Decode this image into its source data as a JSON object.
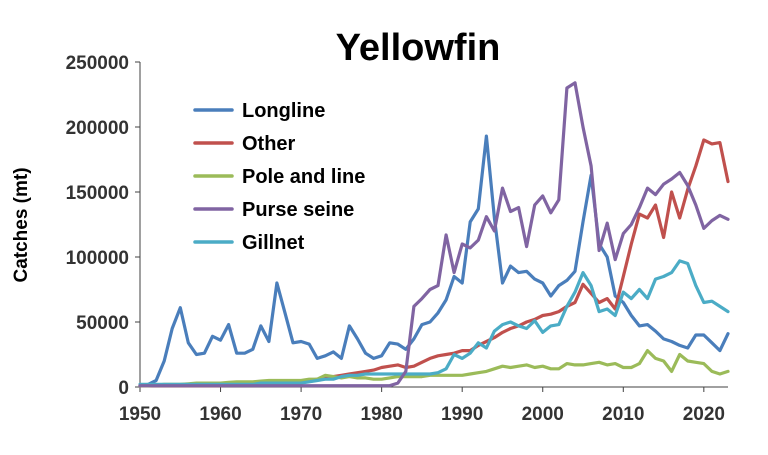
{
  "chart_data": {
    "type": "line",
    "title": "Yellowfin",
    "xlabel": "",
    "ylabel": "Catches (mt)",
    "xlim": [
      1950,
      2023
    ],
    "ylim": [
      0,
      250000
    ],
    "xticks": [
      1950,
      1960,
      1970,
      1980,
      1990,
      2000,
      2010,
      2020
    ],
    "yticks": [
      0,
      50000,
      100000,
      150000,
      200000,
      250000
    ],
    "x_tick_labels": [
      "1950",
      "1960",
      "1970",
      "1980",
      "1990",
      "2000",
      "2010",
      "2020"
    ],
    "y_tick_labels": [
      "0",
      "50000",
      "100000",
      "150000",
      "200000",
      "250000"
    ],
    "grid": false,
    "legend_position": "top-left",
    "x": [
      1950,
      1951,
      1952,
      1953,
      1954,
      1955,
      1956,
      1957,
      1958,
      1959,
      1960,
      1961,
      1962,
      1963,
      1964,
      1965,
      1966,
      1967,
      1968,
      1969,
      1970,
      1971,
      1972,
      1973,
      1974,
      1975,
      1976,
      1977,
      1978,
      1979,
      1980,
      1981,
      1982,
      1983,
      1984,
      1985,
      1986,
      1987,
      1988,
      1989,
      1990,
      1991,
      1992,
      1993,
      1994,
      1995,
      1996,
      1997,
      1998,
      1999,
      2000,
      2001,
      2002,
      2003,
      2004,
      2005,
      2006,
      2007,
      2008,
      2009,
      2010,
      2011,
      2012,
      2013,
      2014,
      2015,
      2016,
      2017,
      2018,
      2019,
      2020,
      2021,
      2022,
      2023
    ],
    "series": [
      {
        "name": "Longline",
        "color": "#4a7ebb",
        "values": [
          1000,
          2000,
          5000,
          20000,
          45000,
          61000,
          34000,
          25000,
          26000,
          39000,
          36000,
          48000,
          26000,
          26000,
          29000,
          47000,
          35000,
          80000,
          57000,
          34000,
          35000,
          33000,
          22000,
          24000,
          27000,
          22000,
          47000,
          37000,
          26000,
          22000,
          24000,
          34000,
          33000,
          29000,
          37000,
          48000,
          50000,
          57000,
          67000,
          85000,
          80000,
          127000,
          137000,
          193000,
          130000,
          80000,
          93000,
          88000,
          89000,
          83000,
          80000,
          70000,
          78000,
          82000,
          89000,
          127000,
          163000,
          110000,
          100000,
          70000,
          65000,
          55000,
          47000,
          48000,
          43000,
          37000,
          35000,
          32000,
          30000,
          40000,
          40000,
          34000,
          28000,
          41000
        ]
      },
      {
        "name": "Other",
        "color": "#c0504d",
        "values": [
          1000,
          1000,
          1000,
          1000,
          1000,
          1000,
          1000,
          1000,
          1000,
          1000,
          1000,
          1500,
          2000,
          2000,
          2000,
          2500,
          3000,
          3000,
          3500,
          4000,
          4000,
          5000,
          6000,
          7000,
          8000,
          9000,
          10000,
          11000,
          12000,
          13000,
          15000,
          16000,
          17000,
          15000,
          16000,
          19000,
          22000,
          24000,
          25000,
          26000,
          28000,
          28000,
          32000,
          35000,
          38000,
          42000,
          45000,
          47000,
          50000,
          52000,
          55000,
          56000,
          58000,
          62000,
          65000,
          79000,
          72000,
          65000,
          68000,
          60000,
          85000,
          110000,
          133000,
          130000,
          140000,
          115000,
          150000,
          130000,
          152000,
          170000,
          190000,
          187000,
          188000,
          158000
        ]
      },
      {
        "name": "Pole and line",
        "color": "#9bbb59",
        "values": [
          1000,
          1000,
          1500,
          2000,
          2000,
          2000,
          2500,
          3000,
          3000,
          3000,
          3000,
          3500,
          4000,
          4000,
          4000,
          4500,
          5000,
          5000,
          5000,
          5000,
          5000,
          6000,
          6000,
          9000,
          8000,
          7000,
          8000,
          7000,
          7000,
          6000,
          6000,
          7000,
          8000,
          8000,
          8000,
          8000,
          9000,
          9000,
          9000,
          9000,
          9000,
          10000,
          11000,
          12000,
          14000,
          16000,
          15000,
          16000,
          17000,
          15000,
          16000,
          14000,
          14000,
          18000,
          17000,
          17000,
          18000,
          19000,
          17000,
          18000,
          15000,
          15000,
          18000,
          28000,
          22000,
          20000,
          12000,
          25000,
          20000,
          19000,
          18000,
          12000,
          10000,
          12000
        ]
      },
      {
        "name": "Purse seine",
        "color": "#8064a2",
        "values": [
          1000,
          1000,
          1000,
          1000,
          1000,
          1000,
          1000,
          1000,
          1000,
          1000,
          1000,
          1000,
          1000,
          1000,
          1000,
          1000,
          1000,
          1000,
          1000,
          1000,
          1000,
          1000,
          1000,
          1000,
          1000,
          1000,
          1000,
          1000,
          1000,
          1000,
          1000,
          1000,
          3000,
          12000,
          62000,
          68000,
          75000,
          78000,
          117000,
          88000,
          110000,
          107000,
          113000,
          131000,
          120000,
          153000,
          135000,
          138000,
          108000,
          140000,
          147000,
          134000,
          144000,
          230000,
          234000,
          200000,
          170000,
          105000,
          126000,
          98000,
          118000,
          125000,
          138000,
          153000,
          148000,
          156000,
          160000,
          165000,
          155000,
          140000,
          122000,
          128000,
          132000,
          129000
        ]
      },
      {
        "name": "Gillnet",
        "color": "#4bacc6",
        "values": [
          2000,
          2000,
          2000,
          2000,
          2000,
          2000,
          2000,
          2000,
          2000,
          2000,
          2000,
          2000,
          2000,
          2000,
          2000,
          3000,
          3000,
          3000,
          3000,
          3000,
          3000,
          4000,
          5000,
          6000,
          6000,
          8000,
          9000,
          9000,
          10000,
          10000,
          10000,
          10000,
          10000,
          10000,
          10000,
          10000,
          10000,
          11000,
          14000,
          25000,
          22000,
          26000,
          34000,
          30000,
          43000,
          48000,
          50000,
          47000,
          45000,
          51000,
          42000,
          47000,
          48000,
          62000,
          73000,
          88000,
          78000,
          58000,
          60000,
          55000,
          73000,
          68000,
          75000,
          68000,
          83000,
          85000,
          88000,
          97000,
          95000,
          78000,
          65000,
          66000,
          62000,
          58000
        ]
      }
    ]
  }
}
